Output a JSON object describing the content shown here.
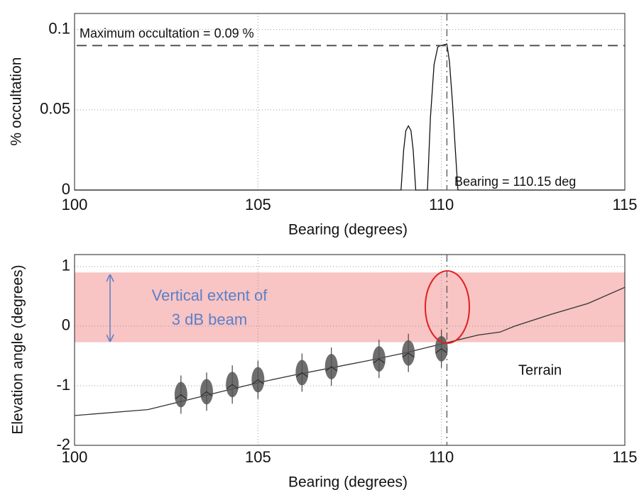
{
  "chart_data": [
    {
      "type": "line",
      "xlabel": "Bearing (degrees)",
      "ylabel": "% occultation",
      "x": [
        100,
        108.9,
        108.97,
        109.03,
        109.1,
        109.17,
        109.23,
        109.3,
        109.62,
        109.7,
        109.8,
        109.9,
        109.97,
        110.15,
        110.22,
        110.3,
        110.38,
        110.45,
        115
      ],
      "series": [
        {
          "color": "#111111",
          "values": [
            0,
            0,
            0.025,
            0.037,
            0.04,
            0.037,
            0.025,
            0,
            0,
            0.045,
            0.078,
            0.089,
            0.09,
            0.091,
            0.08,
            0.055,
            0.025,
            0,
            0
          ]
        }
      ],
      "xlim": [
        100,
        115
      ],
      "ylim": [
        0,
        0.11
      ],
      "xticks": [
        100,
        105,
        110,
        115
      ],
      "yticks": [
        0,
        0.05,
        0.1
      ],
      "grid": true,
      "max_value": 0.09,
      "max_label": "Maximum occultation = 0.09 %",
      "bearing": 110.15,
      "bearing_label": "Bearing = 110.15 deg"
    },
    {
      "type": "line",
      "xlabel": "Bearing (degrees)",
      "ylabel": "Elevation angle (degrees)",
      "x": [
        100,
        102,
        103,
        104,
        105,
        106,
        107,
        108,
        109,
        110,
        111,
        111.6,
        112,
        112.5,
        113,
        114,
        115
      ],
      "series": [
        {
          "color": "#333333",
          "values": [
            -1.5,
            -1.4,
            -1.25,
            -1.1,
            -0.95,
            -0.82,
            -0.7,
            -0.58,
            -0.45,
            -0.3,
            -0.15,
            -0.1,
            0,
            0.1,
            0.2,
            0.38,
            0.65
          ]
        }
      ],
      "points": {
        "color": "#555555",
        "x": [
          102.9,
          103.6,
          104.3,
          105.0,
          106.2,
          107.0,
          108.3,
          109.1,
          110.0
        ],
        "values": [
          -1.15,
          -1.1,
          -0.98,
          -0.9,
          -0.78,
          -0.68,
          -0.55,
          -0.45,
          -0.38
        ]
      },
      "band": [
        -0.27,
        0.9
      ],
      "band_color": "#f8c4c4",
      "xlim": [
        100,
        115
      ],
      "ylim": [
        -2,
        1.2
      ],
      "xticks": [
        100,
        105,
        110,
        115
      ],
      "yticks": [
        -2,
        -1,
        0,
        1
      ],
      "grid": true,
      "bearing": 110.15,
      "beam_label": [
        "Vertical extent of",
        "3 dB beam"
      ],
      "terrain_label": "Terrain"
    }
  ]
}
